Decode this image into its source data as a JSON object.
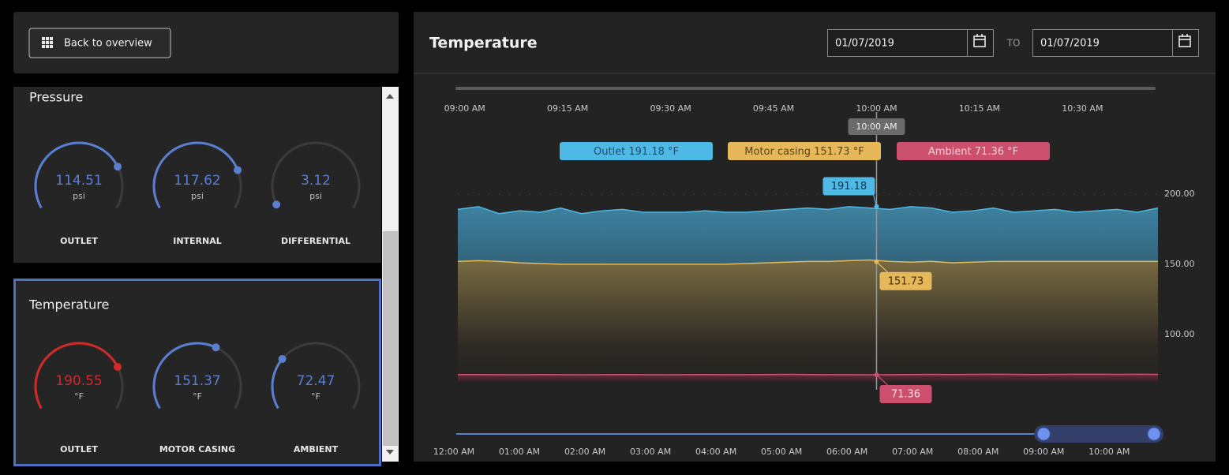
{
  "nav": {
    "back_button": "Back to overview"
  },
  "gauge_groups": [
    {
      "title": "Pressure",
      "unit": "psi",
      "range": [
        0,
        150
      ],
      "color": "#5a7fd0",
      "gauges": [
        {
          "label": "OUTLET",
          "value": 114.51
        },
        {
          "label": "INTERNAL",
          "value": 117.62
        },
        {
          "label": "DIFFERENTIAL",
          "value": 3.12
        }
      ]
    },
    {
      "title": "Temperature",
      "unit": "°F",
      "range": [
        0,
        250
      ],
      "color": "#5a7fd0",
      "gauges": [
        {
          "label": "OUTLET",
          "value": 190.55,
          "color": "#d02a2a"
        },
        {
          "label": "MOTOR CASING",
          "value": 151.37
        },
        {
          "label": "AMBIENT",
          "value": 72.47
        }
      ]
    }
  ],
  "chart_data": {
    "type": "area",
    "title": "Temperature",
    "date_from": "01/07/2019",
    "date_separator": "TO",
    "date_to": "01/07/2019",
    "unit": "°F",
    "x": [
      539,
      542,
      545,
      548,
      551,
      554,
      557,
      560,
      563,
      566,
      569,
      572,
      575,
      578,
      581,
      584,
      587,
      590,
      593,
      596,
      599,
      602,
      605,
      608,
      611,
      614,
      617,
      620,
      623,
      626,
      629,
      632,
      635,
      638,
      641
    ],
    "xlim": [
      539,
      641
    ],
    "xticks": [
      {
        "value": 540,
        "label": "09:00 AM"
      },
      {
        "value": 555,
        "label": "09:15 AM"
      },
      {
        "value": 570,
        "label": "09:30 AM"
      },
      {
        "value": 585,
        "label": "09:45 AM"
      },
      {
        "value": 600,
        "label": "10:00 AM"
      },
      {
        "value": 615,
        "label": "10:15 AM"
      },
      {
        "value": 630,
        "label": "10:30 AM"
      }
    ],
    "ylim": [
      66,
      210
    ],
    "yticks": [
      {
        "value": 100,
        "label": "100.00"
      },
      {
        "value": 150,
        "label": "150.00"
      },
      {
        "value": 200,
        "label": "200.00"
      }
    ],
    "grid": true,
    "cursor": {
      "x": 600,
      "label": "10:00 AM"
    },
    "series": [
      {
        "name": "Outlet",
        "color": "#4fb9e6",
        "cursor_value": 191.18,
        "values": [
          189,
          191,
          186,
          188,
          187,
          190,
          186,
          188,
          189,
          187,
          187,
          187,
          188,
          187,
          187,
          188,
          189,
          190,
          189,
          191,
          190,
          189,
          191,
          190,
          187,
          188,
          190,
          187,
          188,
          189,
          187,
          188,
          189,
          187,
          190
        ]
      },
      {
        "name": "Motor casing",
        "color": "#e6b85a",
        "cursor_value": 151.73,
        "values": [
          152,
          152.5,
          152,
          151,
          150.5,
          150,
          150,
          150,
          150,
          150,
          150,
          150,
          150,
          150,
          150.5,
          151,
          151.5,
          152,
          152,
          152.5,
          153,
          152,
          151.5,
          152,
          151,
          151.5,
          152,
          152,
          152,
          152,
          152,
          152,
          152,
          152,
          152
        ]
      },
      {
        "name": "Ambient",
        "color": "#cc4f6e",
        "cursor_value": 71.36,
        "values": [
          71.5,
          71.5,
          71.4,
          71.3,
          71.5,
          71.4,
          71.3,
          71.4,
          71.5,
          71.4,
          71.3,
          71.4,
          71.5,
          71.4,
          71.4,
          71.5,
          71.6,
          71.5,
          71.4,
          71.4,
          71.36,
          71.4,
          71.5,
          71.6,
          71.5,
          71.6,
          71.7,
          71.6,
          71.5,
          71.6,
          71.7,
          71.7,
          71.6,
          71.7,
          71.6
        ]
      }
    ],
    "navigator": {
      "xlim": [
        0,
        641
      ],
      "xticks": [
        {
          "value": 0,
          "label": "12:00 AM"
        },
        {
          "value": 60,
          "label": "01:00 AM"
        },
        {
          "value": 120,
          "label": "02:00 AM"
        },
        {
          "value": 180,
          "label": "03:00 AM"
        },
        {
          "value": 240,
          "label": "04:00 AM"
        },
        {
          "value": 300,
          "label": "05:00 AM"
        },
        {
          "value": 360,
          "label": "06:00 AM"
        },
        {
          "value": 420,
          "label": "07:00 AM"
        },
        {
          "value": 480,
          "label": "08:00 AM"
        },
        {
          "value": 540,
          "label": "09:00 AM"
        },
        {
          "value": 600,
          "label": "10:00 AM"
        }
      ],
      "selection": [
        540,
        641
      ]
    }
  }
}
